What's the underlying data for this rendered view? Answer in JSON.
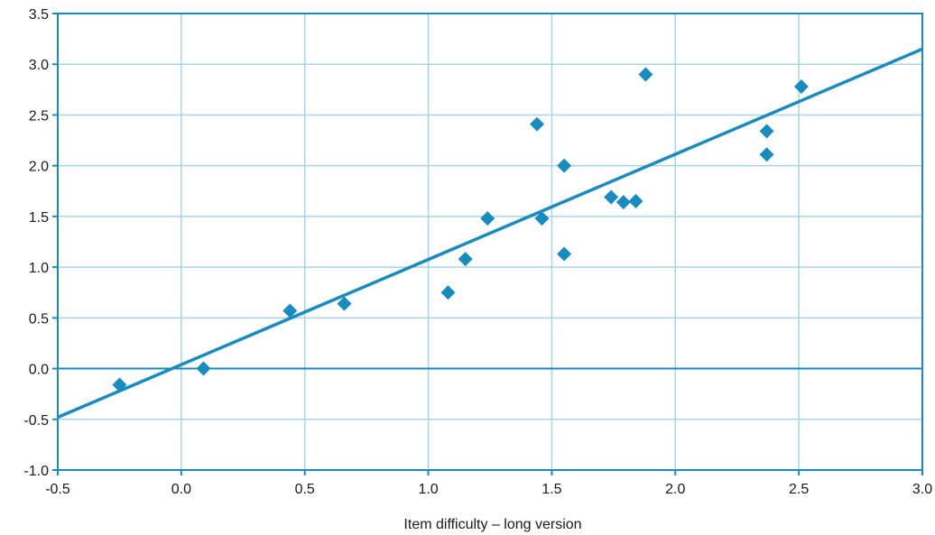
{
  "chart_data": {
    "type": "scatter",
    "title": "",
    "xlabel": "Item difficulty – long version",
    "ylabel": "",
    "xlim": [
      -0.5,
      3.0
    ],
    "ylim": [
      -1.0,
      3.5
    ],
    "x_ticks": [
      -0.5,
      0.0,
      0.5,
      1.0,
      1.5,
      2.0,
      2.5,
      3.0
    ],
    "x_tick_labels": [
      "-0.5",
      "0.0",
      "0.5",
      "1.0",
      "1.5",
      "2.0",
      "2.5",
      "3.0"
    ],
    "y_ticks": [
      -1.0,
      -0.5,
      0.0,
      0.5,
      1.0,
      1.5,
      2.0,
      2.5,
      3.0,
      3.5
    ],
    "y_tick_labels": [
      "-1.0",
      "-0.5",
      "0.0",
      "0.5",
      "1.0",
      "1.5",
      "2.0",
      "2.5",
      "3.0",
      "3.5"
    ],
    "grid": true,
    "legend": "none",
    "marker": "diamond",
    "series": [
      {
        "points": [
          {
            "x": -0.25,
            "y": -0.16
          },
          {
            "x": 0.09,
            "y": 0.0
          },
          {
            "x": 0.44,
            "y": 0.57
          },
          {
            "x": 0.66,
            "y": 0.64
          },
          {
            "x": 1.08,
            "y": 0.75
          },
          {
            "x": 1.15,
            "y": 1.08
          },
          {
            "x": 1.24,
            "y": 1.48
          },
          {
            "x": 1.44,
            "y": 2.41
          },
          {
            "x": 1.46,
            "y": 1.48
          },
          {
            "x": 1.55,
            "y": 2.0
          },
          {
            "x": 1.55,
            "y": 1.13
          },
          {
            "x": 1.74,
            "y": 1.69
          },
          {
            "x": 1.79,
            "y": 1.64
          },
          {
            "x": 1.84,
            "y": 1.65
          },
          {
            "x": 1.88,
            "y": 2.9
          },
          {
            "x": 2.37,
            "y": 2.34
          },
          {
            "x": 2.37,
            "y": 2.11
          },
          {
            "x": 2.51,
            "y": 2.78
          }
        ]
      }
    ],
    "trendline": {
      "x": [
        -0.5,
        3.0
      ],
      "y": [
        -0.48,
        3.15
      ]
    },
    "colors": {
      "marker": "#1a8bbf",
      "trendline": "#1a8bbf",
      "grid": "#a9d3e8",
      "axis": "#1a8bbf",
      "frame": "#1a8bbf",
      "text": "#1a1a1a"
    }
  }
}
